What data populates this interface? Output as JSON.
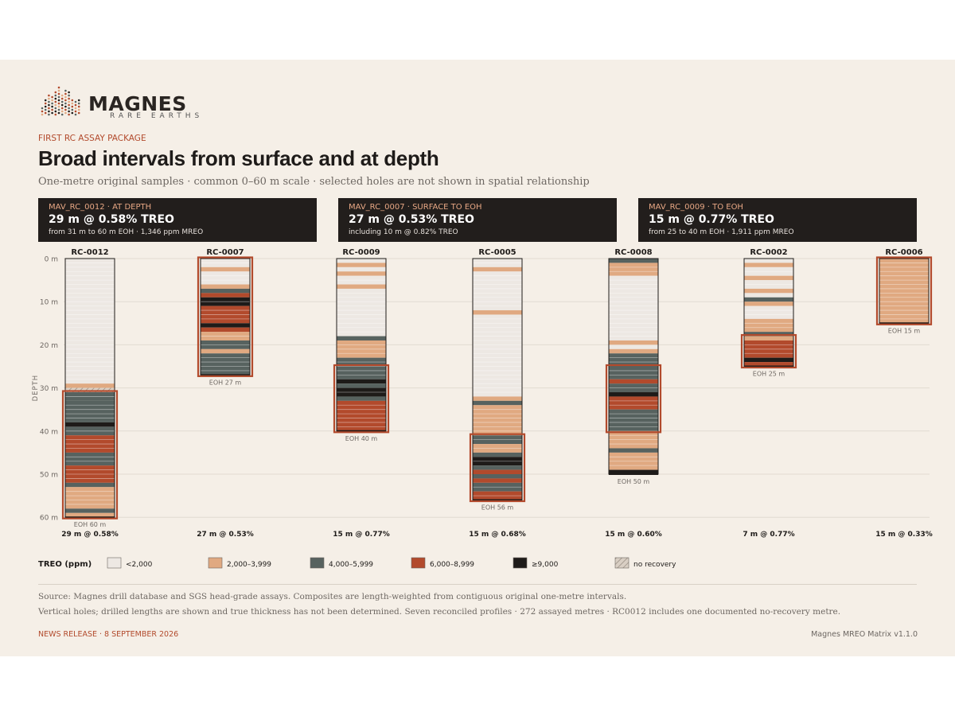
{
  "brand": {
    "name": "MAGNES",
    "tagline": "RARE EARTHS"
  },
  "eyebrow": "FIRST RC ASSAY PACKAGE",
  "title": "Broad intervals from surface and at depth",
  "subtitle": "One-metre original samples · common 0–60 m scale · selected holes are not shown in spatial relationship",
  "callouts": [
    {
      "tag": "MAV_RC_0012 · AT DEPTH",
      "headline": "29 m @ 0.58% TREO",
      "note": "from 31 m to 60 m EOH · 1,346 ppm MREO"
    },
    {
      "tag": "MAV_RC_0007 · SURFACE TO EOH",
      "headline": "27 m @ 0.53% TREO",
      "note": "including 10 m @ 0.82% TREO"
    },
    {
      "tag": "MAV_RC_0009 · TO EOH",
      "headline": "15 m @ 0.77% TREO",
      "note": "from 25 to 40 m EOH · 1,911 ppm MREO"
    }
  ],
  "colors": {
    "c1": "#ede8e3",
    "c2": "#e0a981",
    "c3": "#57625f",
    "c4": "#b24a2c",
    "c5": "#1e1b19",
    "nr": "#d9cfc4",
    "highlight": "#b24a2c"
  },
  "chart_data": {
    "type": "strip-log",
    "ylabel": "DEPTH",
    "yunit": "m",
    "ylim": [
      0,
      60
    ],
    "yticks": [
      0,
      10,
      20,
      30,
      40,
      50,
      60
    ],
    "legend_title": "TREO (ppm)",
    "legend": [
      {
        "key": "c1",
        "label": "<2,000"
      },
      {
        "key": "c2",
        "label": "2,000–3,999"
      },
      {
        "key": "c3",
        "label": "4,000–5,999"
      },
      {
        "key": "c4",
        "label": "6,000–8,999"
      },
      {
        "key": "c5",
        "label": "≥9,000"
      },
      {
        "key": "nr",
        "label": "no recovery"
      }
    ],
    "holes": [
      {
        "id": "RC-0012",
        "eoh": 60,
        "eoh_label": "EOH 60 m",
        "summary": "29 m @ 0.58%",
        "highlight": [
          31,
          60
        ],
        "intervals": [
          [
            0,
            29,
            "c1"
          ],
          [
            29,
            30,
            "c2"
          ],
          [
            30,
            31,
            "nr"
          ],
          [
            31,
            33,
            "c3"
          ],
          [
            33,
            38,
            "c3"
          ],
          [
            38,
            39,
            "c5"
          ],
          [
            39,
            41,
            "c3"
          ],
          [
            41,
            45,
            "c4"
          ],
          [
            45,
            48,
            "c3"
          ],
          [
            48,
            52,
            "c4"
          ],
          [
            52,
            53,
            "c3"
          ],
          [
            53,
            58,
            "c2"
          ],
          [
            58,
            59,
            "c3"
          ],
          [
            59,
            60,
            "c2"
          ]
        ]
      },
      {
        "id": "RC-0007",
        "eoh": 27,
        "eoh_label": "EOH 27 m",
        "summary": "27 m @ 0.53%",
        "highlight": [
          0,
          27
        ],
        "intervals": [
          [
            0,
            2,
            "c1"
          ],
          [
            2,
            3,
            "c2"
          ],
          [
            3,
            6,
            "c1"
          ],
          [
            6,
            7,
            "c2"
          ],
          [
            7,
            8,
            "c3"
          ],
          [
            8,
            9,
            "c4"
          ],
          [
            9,
            11,
            "c5"
          ],
          [
            11,
            15,
            "c4"
          ],
          [
            15,
            16,
            "c5"
          ],
          [
            16,
            17,
            "c4"
          ],
          [
            17,
            19,
            "c2"
          ],
          [
            19,
            21,
            "c3"
          ],
          [
            21,
            22,
            "c2"
          ],
          [
            22,
            27,
            "c3"
          ]
        ]
      },
      {
        "id": "RC-0009",
        "eoh": 40,
        "eoh_label": "EOH 40 m",
        "summary": "15 m @ 0.77%",
        "highlight": [
          25,
          40
        ],
        "intervals": [
          [
            0,
            1,
            "c1"
          ],
          [
            1,
            2,
            "c2"
          ],
          [
            2,
            3,
            "c1"
          ],
          [
            3,
            4,
            "c2"
          ],
          [
            4,
            6,
            "c1"
          ],
          [
            6,
            7,
            "c2"
          ],
          [
            7,
            18,
            "c1"
          ],
          [
            18,
            19,
            "c3"
          ],
          [
            19,
            23,
            "c2"
          ],
          [
            23,
            28,
            "c3"
          ],
          [
            28,
            29,
            "c5"
          ],
          [
            29,
            30,
            "c3"
          ],
          [
            30,
            32,
            "c5"
          ],
          [
            32,
            33,
            "c3"
          ],
          [
            33,
            40,
            "c4"
          ]
        ]
      },
      {
        "id": "RC-0005",
        "eoh": 56,
        "eoh_label": "EOH 56 m",
        "summary": "15 m @ 0.68%",
        "highlight": [
          41,
          56
        ],
        "intervals": [
          [
            0,
            2,
            "c1"
          ],
          [
            2,
            3,
            "c2"
          ],
          [
            3,
            12,
            "c1"
          ],
          [
            12,
            13,
            "c2"
          ],
          [
            13,
            32,
            "c1"
          ],
          [
            32,
            33,
            "c2"
          ],
          [
            33,
            34,
            "c3"
          ],
          [
            34,
            41,
            "c2"
          ],
          [
            41,
            43,
            "c3"
          ],
          [
            43,
            45,
            "c2"
          ],
          [
            45,
            46,
            "c3"
          ],
          [
            46,
            48,
            "c5"
          ],
          [
            48,
            49,
            "c3"
          ],
          [
            49,
            50,
            "c4"
          ],
          [
            50,
            51,
            "c3"
          ],
          [
            51,
            52,
            "c4"
          ],
          [
            52,
            54,
            "c3"
          ],
          [
            54,
            56,
            "c4"
          ]
        ]
      },
      {
        "id": "RC-0008",
        "eoh": 50,
        "eoh_label": "EOH 50 m",
        "summary": "15 m @ 0.60%",
        "highlight": [
          25,
          40
        ],
        "intervals": [
          [
            0,
            1,
            "c3"
          ],
          [
            1,
            4,
            "c2"
          ],
          [
            4,
            19,
            "c1"
          ],
          [
            19,
            20,
            "c2"
          ],
          [
            20,
            21,
            "c1"
          ],
          [
            21,
            22,
            "c2"
          ],
          [
            22,
            25,
            "c3"
          ],
          [
            25,
            28,
            "c3"
          ],
          [
            28,
            29,
            "c4"
          ],
          [
            29,
            31,
            "c3"
          ],
          [
            31,
            32,
            "c5"
          ],
          [
            32,
            35,
            "c4"
          ],
          [
            35,
            40,
            "c3"
          ],
          [
            40,
            44,
            "c2"
          ],
          [
            44,
            45,
            "c3"
          ],
          [
            45,
            49,
            "c2"
          ],
          [
            49,
            50,
            "c5"
          ]
        ]
      },
      {
        "id": "RC-0002",
        "eoh": 25,
        "eoh_label": "EOH 25 m",
        "summary": "7 m @ 0.77%",
        "highlight": [
          18,
          25
        ],
        "intervals": [
          [
            0,
            1,
            "c1"
          ],
          [
            1,
            2,
            "c2"
          ],
          [
            2,
            4,
            "c1"
          ],
          [
            4,
            5,
            "c2"
          ],
          [
            5,
            7,
            "c1"
          ],
          [
            7,
            8,
            "c2"
          ],
          [
            8,
            9,
            "c1"
          ],
          [
            9,
            10,
            "c3"
          ],
          [
            10,
            11,
            "c2"
          ],
          [
            11,
            14,
            "c1"
          ],
          [
            14,
            17,
            "c2"
          ],
          [
            17,
            18,
            "c3"
          ],
          [
            18,
            19,
            "c2"
          ],
          [
            19,
            23,
            "c4"
          ],
          [
            23,
            24,
            "c5"
          ],
          [
            24,
            25,
            "c4"
          ]
        ]
      },
      {
        "id": "RC-0006",
        "eoh": 15,
        "eoh_label": "EOH 15 m",
        "summary": "15 m @ 0.33%",
        "highlight": [
          0,
          15
        ],
        "intervals": [
          [
            0,
            15,
            "c2"
          ]
        ]
      }
    ]
  },
  "source_lines": [
    "Source: Magnes drill database and SGS head-grade assays. Composites are length-weighted from contiguous original one-metre intervals.",
    "Vertical holes; drilled lengths are shown and true thickness has not been determined. Seven reconciled profiles · 272 assayed metres · RC0012 includes one documented no-recovery metre."
  ],
  "footer": {
    "left": "NEWS RELEASE · 8 SEPTEMBER 2026",
    "right": "Magnes MREO Matrix v1.1.0"
  }
}
